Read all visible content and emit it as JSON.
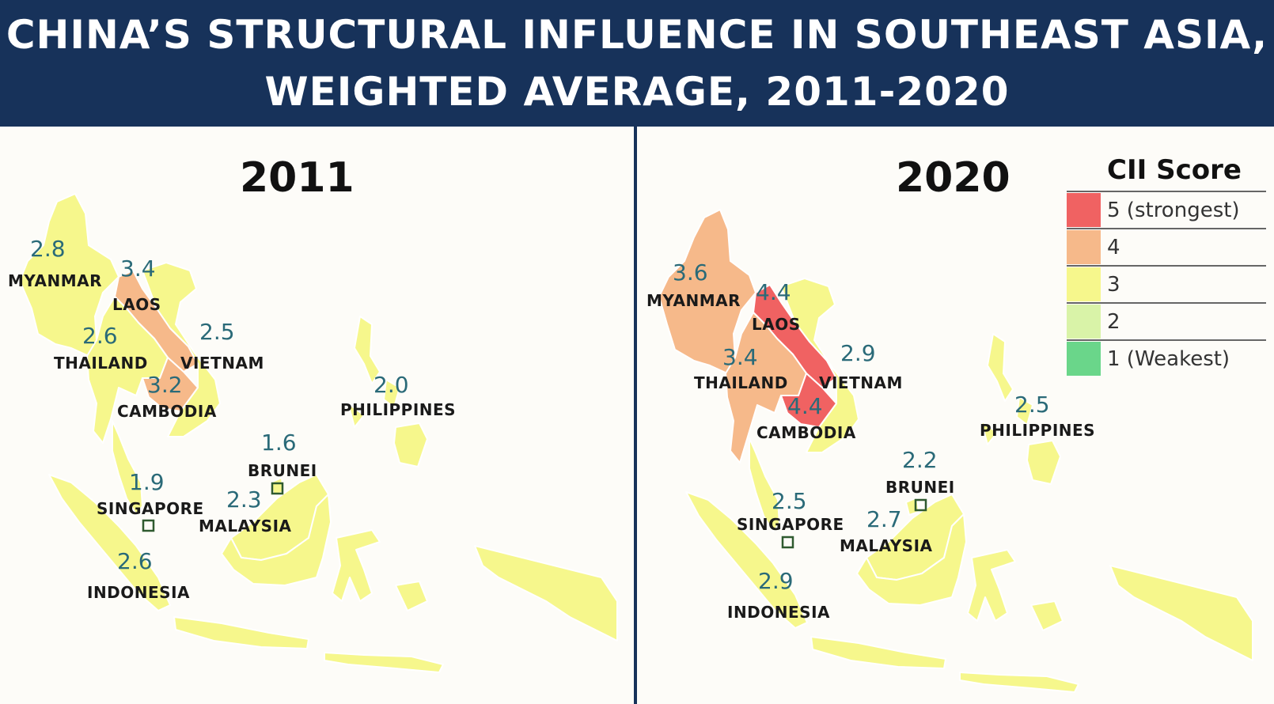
{
  "header": {
    "title_line1": "CHINA’S STRUCTURAL INFLUENCE IN SOUTHEAST ASIA,",
    "title_line2": "WEIGHTED AVERAGE, 2011-2020"
  },
  "legend": {
    "title": "CII Score",
    "items": [
      {
        "label": "5 (strongest)",
        "color": "#f06262"
      },
      {
        "label": "4",
        "color": "#f6b98a"
      },
      {
        "label": "3",
        "color": "#f6f78c"
      },
      {
        "label": "2",
        "color": "#d9f3a8"
      },
      {
        "label": "1 (Weakest)",
        "color": "#6ad68a"
      }
    ]
  },
  "maps": {
    "y2011": {
      "year": "2011",
      "countries": {
        "myanmar": {
          "name": "MYANMAR",
          "score": "2.8",
          "color": "#f6f78c"
        },
        "laos": {
          "name": "LAOS",
          "score": "3.4",
          "color": "#f6b98a"
        },
        "thailand": {
          "name": "THAILAND",
          "score": "2.6",
          "color": "#f6f78c"
        },
        "vietnam": {
          "name": "VIETNAM",
          "score": "2.5",
          "color": "#f6f78c"
        },
        "cambodia": {
          "name": "CAMBODIA",
          "score": "3.2",
          "color": "#f6b98a"
        },
        "philippines": {
          "name": "PHILIPPINES",
          "score": "2.0",
          "color": "#f6f78c"
        },
        "brunei": {
          "name": "BRUNEI",
          "score": "1.6",
          "color": "#f6f78c"
        },
        "singapore": {
          "name": "SINGAPORE",
          "score": "1.9",
          "color": "#f6f78c"
        },
        "malaysia": {
          "name": "MALAYSIA",
          "score": "2.3",
          "color": "#f6f78c"
        },
        "indonesia": {
          "name": "INDONESIA",
          "score": "2.6",
          "color": "#f6f78c"
        }
      }
    },
    "y2020": {
      "year": "2020",
      "countries": {
        "myanmar": {
          "name": "MYANMAR",
          "score": "3.6",
          "color": "#f6b98a"
        },
        "laos": {
          "name": "LAOS",
          "score": "4.4",
          "color": "#f06262"
        },
        "thailand": {
          "name": "THAILAND",
          "score": "3.4",
          "color": "#f6b98a"
        },
        "vietnam": {
          "name": "VIETNAM",
          "score": "2.9",
          "color": "#f6f78c"
        },
        "cambodia": {
          "name": "CAMBODIA",
          "score": "4.4",
          "color": "#f06262"
        },
        "philippines": {
          "name": "PHILIPPINES",
          "score": "2.5",
          "color": "#f6f78c"
        },
        "brunei": {
          "name": "BRUNEI",
          "score": "2.2",
          "color": "#f6f78c"
        },
        "singapore": {
          "name": "SINGAPORE",
          "score": "2.5",
          "color": "#f6f78c"
        },
        "malaysia": {
          "name": "MALAYSIA",
          "score": "2.7",
          "color": "#f6f78c"
        },
        "indonesia": {
          "name": "INDONESIA",
          "score": "2.9",
          "color": "#f6f78c"
        }
      }
    }
  }
}
